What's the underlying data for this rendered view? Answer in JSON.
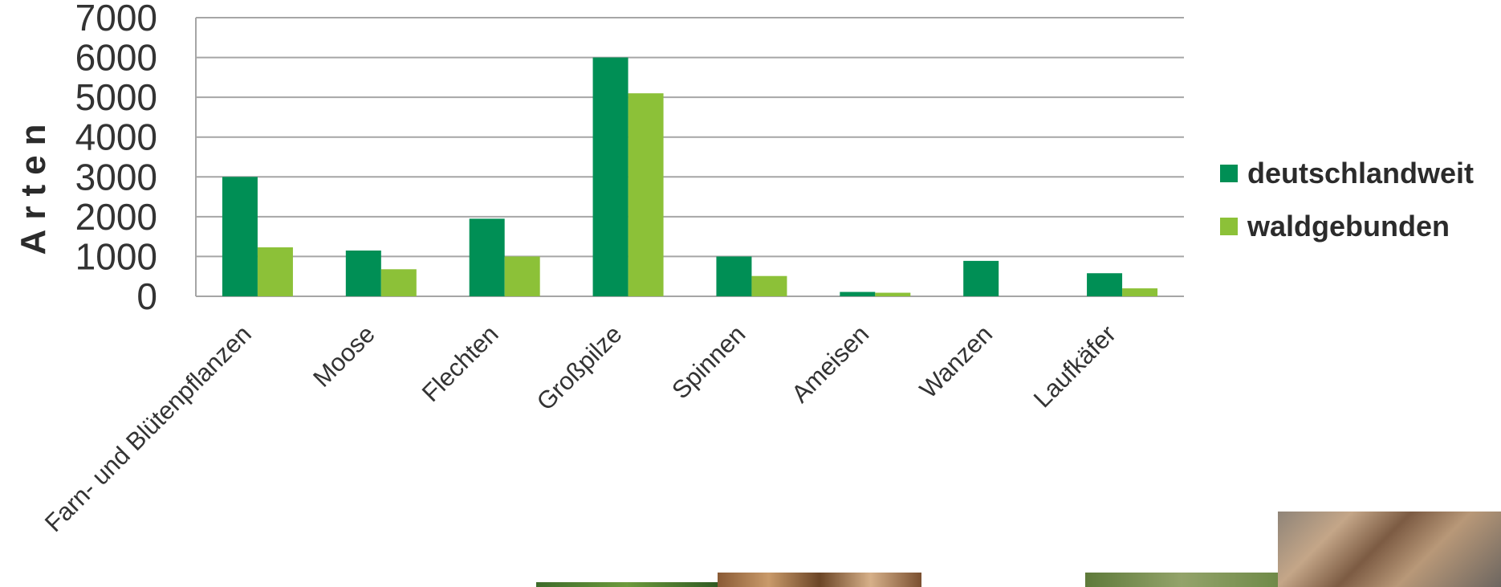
{
  "chart_data": {
    "type": "bar",
    "title": "",
    "xlabel": "",
    "ylabel": "Arten",
    "ylim": [
      0,
      7000
    ],
    "yticks": [
      0,
      1000,
      2000,
      3000,
      4000,
      5000,
      6000,
      7000
    ],
    "grid": true,
    "legend_position": "right",
    "categories": [
      "Farn- und Blütenpflanzen",
      "Moose",
      "Flechten",
      "Großpilze",
      "Spinnen",
      "Ameisen",
      "Wanzen",
      "Laufkäfer"
    ],
    "series": [
      {
        "name": "deutschlandweit",
        "color": "#008f55",
        "values": [
          3000,
          1150,
          1950,
          6000,
          1000,
          110,
          890,
          580
        ]
      },
      {
        "name": "waldgebunden",
        "color": "#8cc138",
        "values": [
          1230,
          680,
          1000,
          5100,
          510,
          90,
          0,
          200
        ]
      }
    ]
  },
  "colors": {
    "grid": "#a6a6a6",
    "axis": "#a6a6a6",
    "text": "#333333"
  }
}
